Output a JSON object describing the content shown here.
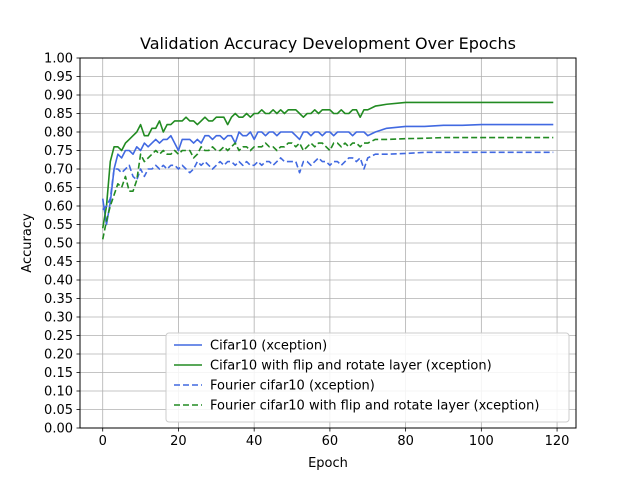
{
  "chart_data": {
    "type": "line",
    "title": "Validation Accuracy Development Over Epochs",
    "xlabel": "Epoch",
    "ylabel": "Accuracy",
    "xlim": [
      -6,
      125
    ],
    "ylim": [
      0.0,
      1.0
    ],
    "xticks": [
      0,
      20,
      40,
      60,
      80,
      100,
      120
    ],
    "yticks": [
      0.0,
      0.05,
      0.1,
      0.15,
      0.2,
      0.25,
      0.3,
      0.35,
      0.4,
      0.45,
      0.5,
      0.55,
      0.6,
      0.65,
      0.7,
      0.75,
      0.8,
      0.85,
      0.9,
      0.95,
      1.0
    ],
    "xtick_labels": [
      "0",
      "20",
      "40",
      "60",
      "80",
      "100",
      "120"
    ],
    "ytick_labels": [
      "0.00",
      "0.05",
      "0.10",
      "0.15",
      "0.20",
      "0.25",
      "0.30",
      "0.35",
      "0.40",
      "0.45",
      "0.50",
      "0.55",
      "0.60",
      "0.65",
      "0.70",
      "0.75",
      "0.80",
      "0.85",
      "0.90",
      "0.95",
      "1.00"
    ],
    "grid": true,
    "legend_position": "lower-right",
    "series": [
      {
        "name": "Cifar10 (xception)",
        "color": "#4169e1",
        "dash": "solid",
        "x": [
          0,
          1,
          2,
          3,
          4,
          5,
          6,
          7,
          8,
          9,
          10,
          11,
          12,
          13,
          14,
          15,
          16,
          17,
          18,
          19,
          20,
          21,
          22,
          23,
          24,
          25,
          26,
          27,
          28,
          29,
          30,
          31,
          32,
          33,
          34,
          35,
          36,
          37,
          38,
          39,
          40,
          41,
          42,
          43,
          44,
          45,
          46,
          47,
          48,
          49,
          50,
          51,
          52,
          53,
          54,
          55,
          56,
          57,
          58,
          59,
          60,
          61,
          62,
          63,
          64,
          65,
          66,
          67,
          68,
          69,
          70,
          72,
          75,
          80,
          85,
          90,
          95,
          100,
          105,
          110,
          115,
          119
        ],
        "y": [
          0.62,
          0.55,
          0.61,
          0.7,
          0.74,
          0.73,
          0.75,
          0.75,
          0.74,
          0.76,
          0.75,
          0.77,
          0.76,
          0.77,
          0.78,
          0.77,
          0.78,
          0.78,
          0.79,
          0.77,
          0.75,
          0.78,
          0.78,
          0.78,
          0.77,
          0.78,
          0.77,
          0.79,
          0.79,
          0.78,
          0.79,
          0.79,
          0.78,
          0.79,
          0.79,
          0.77,
          0.8,
          0.79,
          0.79,
          0.8,
          0.78,
          0.8,
          0.8,
          0.79,
          0.8,
          0.8,
          0.79,
          0.8,
          0.8,
          0.8,
          0.8,
          0.79,
          0.78,
          0.8,
          0.8,
          0.79,
          0.8,
          0.8,
          0.79,
          0.8,
          0.8,
          0.79,
          0.8,
          0.8,
          0.8,
          0.8,
          0.79,
          0.8,
          0.8,
          0.8,
          0.79,
          0.8,
          0.81,
          0.815,
          0.815,
          0.818,
          0.818,
          0.82,
          0.82,
          0.82,
          0.82,
          0.82
        ]
      },
      {
        "name": "Cifar10 with flip and rotate layer (xception)",
        "color": "#228b22",
        "dash": "solid",
        "x": [
          0,
          1,
          2,
          3,
          4,
          5,
          6,
          7,
          8,
          9,
          10,
          11,
          12,
          13,
          14,
          15,
          16,
          17,
          18,
          19,
          20,
          21,
          22,
          23,
          24,
          25,
          26,
          27,
          28,
          29,
          30,
          31,
          32,
          33,
          34,
          35,
          36,
          37,
          38,
          39,
          40,
          41,
          42,
          43,
          44,
          45,
          46,
          47,
          48,
          49,
          50,
          51,
          52,
          53,
          54,
          55,
          56,
          57,
          58,
          59,
          60,
          61,
          62,
          63,
          64,
          65,
          66,
          67,
          68,
          69,
          70,
          72,
          75,
          80,
          85,
          90,
          95,
          100,
          105,
          110,
          115,
          119
        ],
        "y": [
          0.54,
          0.6,
          0.72,
          0.76,
          0.76,
          0.75,
          0.77,
          0.78,
          0.79,
          0.8,
          0.82,
          0.79,
          0.79,
          0.81,
          0.81,
          0.83,
          0.8,
          0.82,
          0.82,
          0.83,
          0.83,
          0.83,
          0.84,
          0.83,
          0.83,
          0.82,
          0.83,
          0.84,
          0.83,
          0.83,
          0.84,
          0.84,
          0.84,
          0.82,
          0.84,
          0.85,
          0.84,
          0.84,
          0.85,
          0.84,
          0.85,
          0.85,
          0.86,
          0.85,
          0.85,
          0.86,
          0.85,
          0.86,
          0.85,
          0.86,
          0.86,
          0.86,
          0.85,
          0.84,
          0.85,
          0.85,
          0.86,
          0.85,
          0.86,
          0.86,
          0.86,
          0.85,
          0.85,
          0.86,
          0.85,
          0.85,
          0.86,
          0.86,
          0.84,
          0.86,
          0.86,
          0.87,
          0.875,
          0.88,
          0.88,
          0.88,
          0.88,
          0.88,
          0.88,
          0.88,
          0.88,
          0.88
        ]
      },
      {
        "name": "Fourier cifar10 (xception)",
        "color": "#4169e1",
        "dash": "dashed",
        "x": [
          0,
          1,
          2,
          3,
          4,
          5,
          6,
          7,
          8,
          9,
          10,
          11,
          12,
          13,
          14,
          15,
          16,
          17,
          18,
          19,
          20,
          21,
          22,
          23,
          24,
          25,
          26,
          27,
          28,
          29,
          30,
          31,
          32,
          33,
          34,
          35,
          36,
          37,
          38,
          39,
          40,
          41,
          42,
          43,
          44,
          45,
          46,
          47,
          48,
          49,
          50,
          51,
          52,
          53,
          54,
          55,
          56,
          57,
          58,
          59,
          60,
          61,
          62,
          63,
          64,
          65,
          66,
          67,
          68,
          69,
          70,
          72,
          75,
          80,
          85,
          90,
          95,
          100,
          105,
          110,
          115,
          119
        ],
        "y": [
          0.59,
          0.6,
          0.62,
          0.7,
          0.7,
          0.69,
          0.7,
          0.71,
          0.68,
          0.67,
          0.7,
          0.68,
          0.7,
          0.7,
          0.71,
          0.7,
          0.71,
          0.7,
          0.71,
          0.71,
          0.7,
          0.71,
          0.7,
          0.69,
          0.7,
          0.72,
          0.71,
          0.72,
          0.71,
          0.7,
          0.71,
          0.72,
          0.71,
          0.72,
          0.72,
          0.71,
          0.72,
          0.71,
          0.72,
          0.71,
          0.71,
          0.72,
          0.71,
          0.72,
          0.72,
          0.71,
          0.72,
          0.73,
          0.72,
          0.72,
          0.72,
          0.72,
          0.69,
          0.72,
          0.72,
          0.71,
          0.72,
          0.73,
          0.72,
          0.72,
          0.71,
          0.72,
          0.72,
          0.71,
          0.72,
          0.73,
          0.73,
          0.72,
          0.73,
          0.7,
          0.73,
          0.74,
          0.74,
          0.742,
          0.745,
          0.745,
          0.745,
          0.745,
          0.745,
          0.745,
          0.745,
          0.745
        ]
      },
      {
        "name": "Fourier cifar10 with flip and rotate layer (xception)",
        "color": "#228b22",
        "dash": "dashed",
        "x": [
          0,
          1,
          2,
          3,
          4,
          5,
          6,
          7,
          8,
          9,
          10,
          11,
          12,
          13,
          14,
          15,
          16,
          17,
          18,
          19,
          20,
          21,
          22,
          23,
          24,
          25,
          26,
          27,
          28,
          29,
          30,
          31,
          32,
          33,
          34,
          35,
          36,
          37,
          38,
          39,
          40,
          41,
          42,
          43,
          44,
          45,
          46,
          47,
          48,
          49,
          50,
          51,
          52,
          53,
          54,
          55,
          56,
          57,
          58,
          59,
          60,
          61,
          62,
          63,
          64,
          65,
          66,
          67,
          68,
          69,
          70,
          72,
          75,
          80,
          85,
          90,
          95,
          100,
          105,
          110,
          115,
          119
        ],
        "y": [
          0.51,
          0.56,
          0.6,
          0.63,
          0.66,
          0.65,
          0.68,
          0.64,
          0.64,
          0.67,
          0.74,
          0.72,
          0.73,
          0.74,
          0.75,
          0.74,
          0.75,
          0.74,
          0.74,
          0.75,
          0.74,
          0.75,
          0.75,
          0.75,
          0.73,
          0.74,
          0.76,
          0.75,
          0.75,
          0.76,
          0.75,
          0.75,
          0.76,
          0.75,
          0.76,
          0.77,
          0.75,
          0.76,
          0.76,
          0.75,
          0.76,
          0.76,
          0.76,
          0.77,
          0.76,
          0.76,
          0.75,
          0.76,
          0.76,
          0.77,
          0.77,
          0.76,
          0.77,
          0.75,
          0.76,
          0.77,
          0.76,
          0.77,
          0.77,
          0.76,
          0.75,
          0.77,
          0.77,
          0.76,
          0.77,
          0.76,
          0.77,
          0.77,
          0.76,
          0.77,
          0.77,
          0.78,
          0.78,
          0.782,
          0.783,
          0.785,
          0.785,
          0.785,
          0.785,
          0.785,
          0.785,
          0.785
        ]
      }
    ]
  }
}
